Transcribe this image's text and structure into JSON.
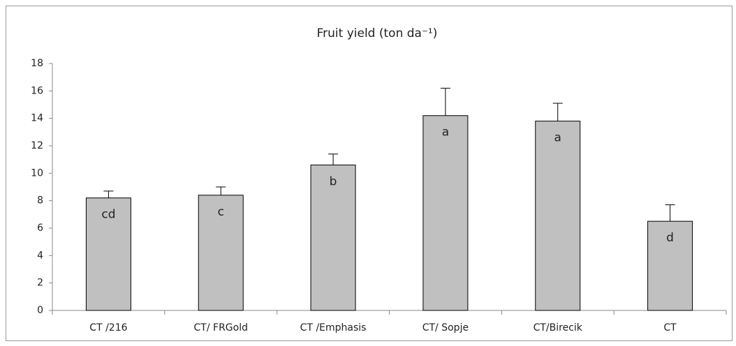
{
  "chart_data": {
    "type": "bar",
    "title": "Fruit yield (ton da⁻¹)",
    "categories": [
      "CT /216",
      "CT/ FRGold",
      "CT /Emphasis",
      "CT/ Sopje",
      "CT/Birecik",
      "CT"
    ],
    "values": [
      8.2,
      8.4,
      10.6,
      14.2,
      13.8,
      6.5
    ],
    "errors": [
      0.5,
      0.6,
      0.8,
      2.0,
      1.3,
      1.2
    ],
    "letters": [
      "cd",
      "c",
      "b",
      "a",
      "a",
      "d"
    ],
    "color": "#c0c0c0",
    "ylim": [
      0,
      18
    ],
    "yticks": [
      0,
      2,
      4,
      6,
      8,
      10,
      12,
      14,
      16,
      18
    ],
    "grid": false
  }
}
